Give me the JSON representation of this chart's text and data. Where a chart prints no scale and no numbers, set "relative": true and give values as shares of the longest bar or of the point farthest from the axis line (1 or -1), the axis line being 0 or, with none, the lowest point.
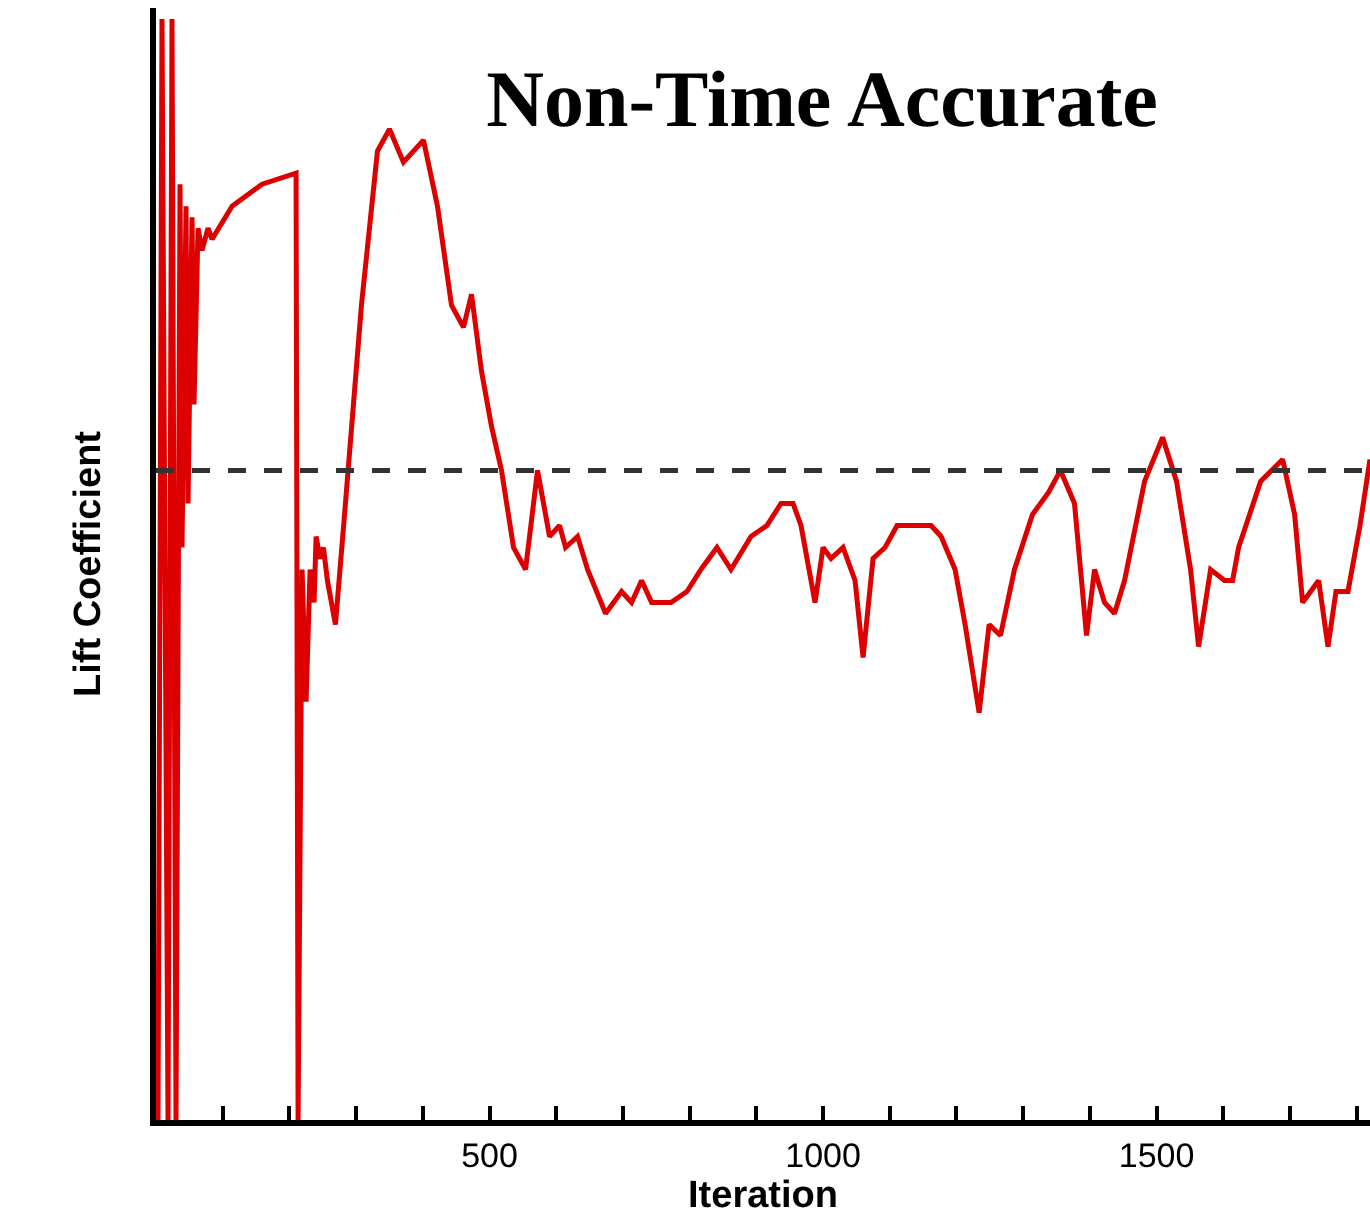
{
  "chart_data": {
    "type": "line",
    "title": "Non-Time Accurate",
    "xlabel": "Iteration",
    "ylabel": "Lift Coefficient",
    "relative": true,
    "grid": false,
    "marker": "none",
    "line_style": "solid",
    "xlim": [
      0,
      1820
    ],
    "xticks": [
      {
        "value": 100,
        "label": null
      },
      {
        "value": 200,
        "label": null
      },
      {
        "value": 300,
        "label": null
      },
      {
        "value": 400,
        "label": null
      },
      500,
      {
        "value": 600,
        "label": null
      },
      {
        "value": 700,
        "label": null
      },
      {
        "value": 800,
        "label": null
      },
      {
        "value": 900,
        "label": null
      },
      1000,
      {
        "value": 1100,
        "label": null
      },
      {
        "value": 1200,
        "label": null
      },
      {
        "value": 1300,
        "label": null
      },
      {
        "value": 1400,
        "label": null
      },
      1500,
      {
        "value": 1600,
        "label": null
      },
      {
        "value": 1700,
        "label": null
      },
      {
        "value": 1800,
        "label": null
      }
    ],
    "ref_lines": [
      {
        "axis": "y",
        "value": 0.59,
        "color": "#333333",
        "line_style": "dashed"
      }
    ],
    "series": [
      {
        "color": "#dd0000",
        "x": [
          3,
          9,
          18,
          24,
          30,
          36,
          39,
          45,
          48,
          54,
          57,
          63,
          69,
          78,
          84,
          114,
          159,
          210,
          213,
          219,
          225,
          231,
          237,
          240,
          246,
          251,
          257,
          269,
          284,
          308,
          332,
          350,
          371,
          401,
          422,
          443,
          461,
          473,
          488,
          503,
          518,
          536,
          554,
          572,
          581,
          590,
          605,
          614,
          632,
          647,
          674,
          698,
          713,
          728,
          743,
          772,
          796,
          817,
          841,
          862,
          892,
          916,
          937,
          955,
          967,
          979,
          988,
          1000,
          1012,
          1030,
          1048,
          1060,
          1075,
          1093,
          1111,
          1132,
          1147,
          1162,
          1177,
          1198,
          1213,
          1234,
          1249,
          1266,
          1287,
          1314,
          1338,
          1356,
          1377,
          1395,
          1407,
          1422,
          1437,
          1452,
          1482,
          1509,
          1530,
          1551,
          1563,
          1581,
          1602,
          1614,
          1623,
          1656,
          1689,
          1707,
          1719,
          1731,
          1743,
          1757,
          1769,
          1787,
          1805,
          1820
        ],
        "values": [
          0,
          1,
          0,
          1,
          0,
          0.85,
          0.52,
          0.83,
          0.56,
          0.82,
          0.65,
          0.81,
          0.79,
          0.81,
          0.8,
          0.83,
          0.85,
          0.86,
          0,
          0.5,
          0.38,
          0.5,
          0.47,
          0.53,
          0.51,
          0.52,
          0.49,
          0.45,
          0.56,
          0.74,
          0.88,
          0.9,
          0.87,
          0.89,
          0.83,
          0.74,
          0.72,
          0.75,
          0.68,
          0.63,
          0.59,
          0.52,
          0.5,
          0.59,
          0.56,
          0.53,
          0.54,
          0.52,
          0.53,
          0.5,
          0.46,
          0.48,
          0.47,
          0.49,
          0.47,
          0.47,
          0.48,
          0.5,
          0.52,
          0.5,
          0.53,
          0.54,
          0.56,
          0.56,
          0.54,
          0.5,
          0.47,
          0.52,
          0.51,
          0.52,
          0.49,
          0.42,
          0.51,
          0.52,
          0.54,
          0.54,
          0.54,
          0.54,
          0.53,
          0.5,
          0.45,
          0.37,
          0.45,
          0.44,
          0.5,
          0.55,
          0.57,
          0.59,
          0.56,
          0.44,
          0.5,
          0.47,
          0.46,
          0.49,
          0.58,
          0.62,
          0.58,
          0.5,
          0.43,
          0.5,
          0.49,
          0.49,
          0.52,
          0.58,
          0.6,
          0.55,
          0.47,
          0.48,
          0.49,
          0.43,
          0.48,
          0.48,
          0.54,
          0.6
        ]
      }
    ]
  }
}
